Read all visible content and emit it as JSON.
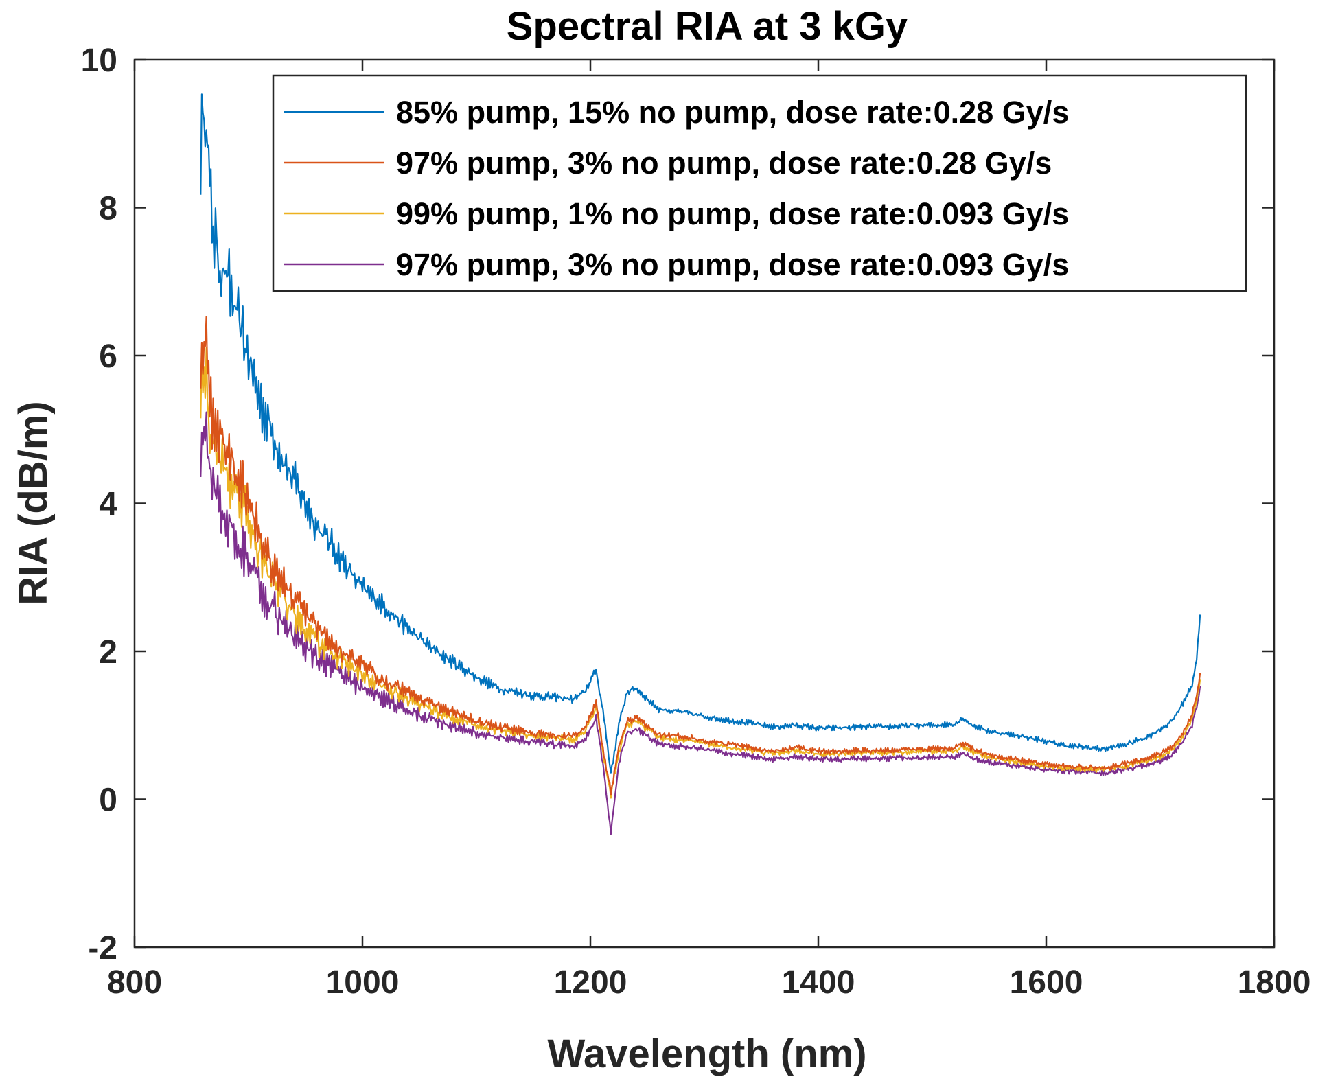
{
  "chart_data": {
    "type": "line",
    "title": "Spectral RIA at 3 kGy",
    "xlabel": "Wavelength (nm)",
    "ylabel": "RIA (dB/m)",
    "xlim": [
      800,
      1800
    ],
    "ylim": [
      -2,
      10
    ],
    "xticks": [
      800,
      1000,
      1200,
      1400,
      1600,
      1800
    ],
    "yticks": [
      -2,
      0,
      2,
      4,
      6,
      8,
      10
    ],
    "grid": false,
    "legend_position": "top-right",
    "series": [
      {
        "name": "85% pump, 15% no pump, dose rate:0.28 Gy/s",
        "color": "#0072BD",
        "noise": 0.42,
        "x": [
          858,
          862,
          866,
          870,
          876,
          882,
          888,
          894,
          900,
          906,
          912,
          920,
          930,
          940,
          950,
          960,
          975,
          990,
          1000,
          1020,
          1040,
          1060,
          1080,
          1100,
          1120,
          1150,
          1170,
          1185,
          1195,
          1205,
          1212,
          1218,
          1225,
          1232,
          1240,
          1250,
          1260,
          1280,
          1300,
          1330,
          1360,
          1380,
          1400,
          1450,
          1500,
          1520,
          1527,
          1535,
          1550,
          1580,
          1600,
          1620,
          1650,
          1670,
          1690,
          1700,
          1710,
          1720,
          1728,
          1732,
          1735
        ],
        "y": [
          8.8,
          9.5,
          8.2,
          7.6,
          7.2,
          7.0,
          6.6,
          6.3,
          6.0,
          5.6,
          5.3,
          5.0,
          4.6,
          4.3,
          4.0,
          3.7,
          3.4,
          3.05,
          2.85,
          2.6,
          2.3,
          2.05,
          1.85,
          1.65,
          1.5,
          1.4,
          1.38,
          1.35,
          1.45,
          1.75,
          1.1,
          0.35,
          1.0,
          1.45,
          1.5,
          1.35,
          1.22,
          1.18,
          1.12,
          1.05,
          0.98,
          1.0,
          0.96,
          0.98,
          1.0,
          1.02,
          1.1,
          1.0,
          0.92,
          0.85,
          0.78,
          0.72,
          0.68,
          0.74,
          0.85,
          0.95,
          1.05,
          1.3,
          1.55,
          1.9,
          2.5
        ]
      },
      {
        "name": "97% pump, 3% no pump, dose rate:0.28 Gy/s",
        "color": "#D95319",
        "noise": 0.3,
        "x": [
          858,
          862,
          866,
          870,
          876,
          882,
          888,
          894,
          900,
          906,
          912,
          920,
          930,
          940,
          950,
          960,
          975,
          990,
          1000,
          1020,
          1040,
          1060,
          1080,
          1100,
          1120,
          1150,
          1170,
          1185,
          1195,
          1205,
          1212,
          1218,
          1225,
          1232,
          1240,
          1250,
          1260,
          1280,
          1300,
          1330,
          1360,
          1380,
          1400,
          1450,
          1500,
          1520,
          1527,
          1535,
          1550,
          1580,
          1600,
          1620,
          1650,
          1670,
          1690,
          1700,
          1710,
          1720,
          1728,
          1732,
          1735
        ],
        "y": [
          6.0,
          6.3,
          5.3,
          5.1,
          4.9,
          4.7,
          4.5,
          4.3,
          4.1,
          3.8,
          3.5,
          3.2,
          2.95,
          2.7,
          2.5,
          2.3,
          2.1,
          1.9,
          1.8,
          1.6,
          1.45,
          1.3,
          1.18,
          1.06,
          0.98,
          0.9,
          0.86,
          0.85,
          0.95,
          1.3,
          0.6,
          0.1,
          0.7,
          1.05,
          1.1,
          1.0,
          0.88,
          0.85,
          0.8,
          0.72,
          0.65,
          0.7,
          0.65,
          0.66,
          0.68,
          0.7,
          0.75,
          0.68,
          0.6,
          0.52,
          0.48,
          0.44,
          0.42,
          0.48,
          0.56,
          0.62,
          0.7,
          0.9,
          1.15,
          1.4,
          1.7
        ]
      },
      {
        "name": "99% pump, 1% no pump, dose rate:0.093 Gy/s",
        "color": "#EDB120",
        "noise": 0.3,
        "x": [
          858,
          862,
          866,
          870,
          876,
          882,
          888,
          894,
          900,
          906,
          912,
          920,
          930,
          940,
          950,
          960,
          975,
          990,
          1000,
          1020,
          1040,
          1060,
          1080,
          1100,
          1120,
          1150,
          1170,
          1185,
          1195,
          1205,
          1212,
          1218,
          1225,
          1232,
          1240,
          1250,
          1260,
          1280,
          1300,
          1330,
          1360,
          1380,
          1400,
          1450,
          1500,
          1520,
          1527,
          1535,
          1550,
          1580,
          1600,
          1620,
          1650,
          1670,
          1690,
          1700,
          1710,
          1720,
          1728,
          1732,
          1735
        ],
        "y": [
          5.6,
          5.9,
          5.0,
          4.8,
          4.6,
          4.4,
          4.2,
          4.0,
          3.8,
          3.5,
          3.25,
          3.0,
          2.75,
          2.5,
          2.3,
          2.12,
          1.95,
          1.78,
          1.68,
          1.5,
          1.35,
          1.22,
          1.1,
          1.0,
          0.93,
          0.86,
          0.83,
          0.8,
          0.9,
          1.25,
          0.55,
          0.05,
          0.65,
          1.0,
          1.05,
          0.95,
          0.84,
          0.8,
          0.76,
          0.68,
          0.62,
          0.66,
          0.62,
          0.63,
          0.65,
          0.66,
          0.72,
          0.64,
          0.57,
          0.49,
          0.45,
          0.42,
          0.4,
          0.45,
          0.52,
          0.58,
          0.66,
          0.85,
          1.1,
          1.35,
          1.6
        ]
      },
      {
        "name": "97% pump, 3% no pump, dose rate:0.093 Gy/s",
        "color": "#7E2F8E",
        "noise": 0.3,
        "x": [
          858,
          862,
          866,
          870,
          876,
          882,
          888,
          894,
          900,
          906,
          912,
          920,
          930,
          940,
          950,
          960,
          975,
          990,
          1000,
          1020,
          1040,
          1060,
          1080,
          1100,
          1120,
          1150,
          1170,
          1185,
          1195,
          1205,
          1212,
          1218,
          1225,
          1232,
          1240,
          1250,
          1260,
          1280,
          1300,
          1330,
          1360,
          1380,
          1400,
          1450,
          1500,
          1520,
          1527,
          1535,
          1550,
          1580,
          1600,
          1620,
          1650,
          1670,
          1690,
          1700,
          1710,
          1720,
          1728,
          1732,
          1735
        ],
        "y": [
          4.8,
          5.0,
          4.4,
          4.2,
          4.0,
          3.8,
          3.6,
          3.4,
          3.2,
          3.0,
          2.8,
          2.6,
          2.4,
          2.2,
          2.05,
          1.9,
          1.75,
          1.6,
          1.5,
          1.35,
          1.2,
          1.08,
          0.98,
          0.9,
          0.84,
          0.78,
          0.74,
          0.72,
          0.8,
          1.1,
          0.35,
          -0.45,
          0.5,
          0.9,
          0.95,
          0.85,
          0.75,
          0.72,
          0.68,
          0.6,
          0.54,
          0.58,
          0.54,
          0.55,
          0.57,
          0.58,
          0.62,
          0.55,
          0.5,
          0.44,
          0.4,
          0.38,
          0.36,
          0.4,
          0.47,
          0.52,
          0.6,
          0.78,
          1.0,
          1.25,
          1.5
        ]
      }
    ]
  }
}
